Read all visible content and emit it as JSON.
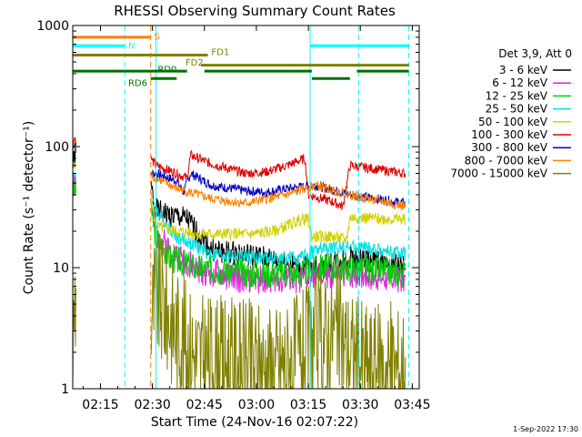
{
  "chart_data": {
    "type": "line",
    "title": "RHESSI Observing Summary Count Rates",
    "ylabel": "Count Rate (s⁻¹ detector⁻¹)",
    "xlabel": "Start Time (24-Nov-16 02:07:22)",
    "yscale": "log",
    "ylim": [
      1,
      1000
    ],
    "xlim_minutes": [
      0,
      100
    ],
    "x_ticks": [
      {
        "t": 8,
        "label": "02:15"
      },
      {
        "t": 23,
        "label": "02:30"
      },
      {
        "t": 38,
        "label": "02:45"
      },
      {
        "t": 53,
        "label": "03:00"
      },
      {
        "t": 68,
        "label": "03:15"
      },
      {
        "t": 83,
        "label": "03:30"
      },
      {
        "t": 98,
        "label": "03:45"
      }
    ],
    "y_ticks": [
      {
        "v": 1,
        "label": "1"
      },
      {
        "v": 10,
        "label": "10"
      },
      {
        "v": 100,
        "label": "100"
      },
      {
        "v": 1000,
        "label": "1000"
      }
    ],
    "legend_header": "Det 3,9, Att 0",
    "legend_position": "right",
    "series": [
      {
        "name": "3 - 6 keV",
        "color": "#000000",
        "seed": 1,
        "noise": 0.1,
        "pts": [
          [
            0,
            70
          ],
          [
            0.6,
            80
          ],
          [
            1,
            85
          ],
          [
            22.5,
            48
          ],
          [
            24,
            30
          ],
          [
            26,
            28
          ],
          [
            33,
            25
          ],
          [
            40,
            14
          ],
          [
            55,
            12
          ],
          [
            66,
            10
          ],
          [
            70,
            10
          ],
          [
            80,
            12
          ],
          [
            96,
            10
          ]
        ]
      },
      {
        "name": "6 - 12 keV",
        "color": "#e020e0",
        "seed": 2,
        "noise": 0.12,
        "pts": [
          [
            0,
            45
          ],
          [
            0.6,
            55
          ],
          [
            1,
            50
          ],
          [
            22.5,
            34
          ],
          [
            24,
            20
          ],
          [
            28,
            14
          ],
          [
            36,
            9.5
          ],
          [
            50,
            8
          ],
          [
            66,
            8
          ],
          [
            70,
            8.5
          ],
          [
            80,
            9
          ],
          [
            96,
            8
          ]
        ]
      },
      {
        "name": "12 - 25 keV",
        "color": "#00d000",
        "seed": 3,
        "noise": 0.12,
        "pts": [
          [
            0,
            40
          ],
          [
            0.6,
            45
          ],
          [
            1,
            42
          ],
          [
            22.5,
            30
          ],
          [
            24,
            18
          ],
          [
            28,
            12
          ],
          [
            36,
            10
          ],
          [
            50,
            9
          ],
          [
            66,
            9
          ],
          [
            70,
            10
          ],
          [
            80,
            10
          ],
          [
            96,
            9
          ]
        ]
      },
      {
        "name": "25 - 50 keV",
        "color": "#00e0e0",
        "seed": 4,
        "noise": 0.06,
        "pts": [
          [
            0,
            55
          ],
          [
            0.6,
            60
          ],
          [
            1,
            58
          ],
          [
            22.5,
            36
          ],
          [
            24,
            30
          ],
          [
            30,
            18
          ],
          [
            40,
            13
          ],
          [
            55,
            12
          ],
          [
            66,
            12
          ],
          [
            70,
            14
          ],
          [
            80,
            15
          ],
          [
            96,
            13
          ]
        ]
      },
      {
        "name": "50 - 100 keV",
        "color": "#d0d000",
        "seed": 5,
        "noise": 0.05,
        "pts": [
          [
            0,
            65
          ],
          [
            0.6,
            75
          ],
          [
            1,
            70
          ],
          [
            22.5,
            40
          ],
          [
            24,
            22
          ],
          [
            30,
            20
          ],
          [
            36,
            19
          ],
          [
            52,
            19
          ],
          [
            58,
            20
          ],
          [
            66,
            25
          ],
          [
            68,
            25
          ],
          [
            69,
            18
          ],
          [
            75,
            18
          ],
          [
            79,
            17
          ],
          [
            80,
            26
          ],
          [
            96,
            25
          ]
        ]
      },
      {
        "name": "100 - 300 keV",
        "color": "#e00000",
        "seed": 6,
        "noise": 0.04,
        "pts": [
          [
            0,
            110
          ],
          [
            0.6,
            120
          ],
          [
            1,
            110
          ],
          [
            22.5,
            80
          ],
          [
            24,
            70
          ],
          [
            30,
            60
          ],
          [
            33,
            55
          ],
          [
            34,
            85
          ],
          [
            40,
            72
          ],
          [
            50,
            60
          ],
          [
            56,
            62
          ],
          [
            62,
            70
          ],
          [
            67,
            80
          ],
          [
            68,
            40
          ],
          [
            75,
            35
          ],
          [
            78,
            32
          ],
          [
            80,
            70
          ],
          [
            96,
            60
          ]
        ]
      },
      {
        "name": "300 - 800 keV",
        "color": "#0000c0",
        "seed": 7,
        "noise": 0.04,
        "pts": [
          [
            0,
            100
          ],
          [
            0.6,
            110
          ],
          [
            1,
            100
          ],
          [
            22.5,
            60
          ],
          [
            24,
            60
          ],
          [
            30,
            52
          ],
          [
            32,
            42
          ],
          [
            34,
            60
          ],
          [
            40,
            48
          ],
          [
            50,
            43
          ],
          [
            56,
            42
          ],
          [
            62,
            45
          ],
          [
            70,
            48
          ],
          [
            80,
            40
          ],
          [
            96,
            34
          ]
        ]
      },
      {
        "name": "800 - 7000 keV",
        "color": "#ff8000",
        "seed": 8,
        "noise": 0.04,
        "pts": [
          [
            0,
            100
          ],
          [
            0.6,
            110
          ],
          [
            1,
            100
          ],
          [
            22.5,
            55
          ],
          [
            24,
            55
          ],
          [
            30,
            45
          ],
          [
            40,
            37
          ],
          [
            50,
            34
          ],
          [
            62,
            40
          ],
          [
            70,
            48
          ],
          [
            80,
            40
          ],
          [
            96,
            32
          ]
        ]
      },
      {
        "name": "7000 - 15000 keV",
        "color": "#808000",
        "seed": 9,
        "noise": 0.55,
        "pts": [
          [
            0,
            2
          ],
          [
            0.6,
            6
          ],
          [
            1,
            5
          ],
          [
            22.5,
            4
          ],
          [
            24,
            6
          ],
          [
            26,
            5
          ],
          [
            30,
            3
          ],
          [
            36,
            1.8
          ],
          [
            50,
            1.6
          ],
          [
            58,
            1.5
          ],
          [
            66,
            1.8
          ],
          [
            70,
            2.5
          ],
          [
            76,
            3
          ],
          [
            80,
            2
          ],
          [
            86,
            1.5
          ],
          [
            96,
            1.5
          ]
        ]
      }
    ],
    "vertical_markers": [
      {
        "t": 0,
        "style": "solid",
        "color": "#00ffff"
      },
      {
        "t": 15,
        "style": "dashed",
        "color": "#00ffff"
      },
      {
        "t": 22.5,
        "style": "dashed",
        "color": "#ff8000"
      },
      {
        "t": 24,
        "style": "solid",
        "color": "#00ffff"
      },
      {
        "t": 68.5,
        "style": "solid",
        "color": "#00ffff"
      },
      {
        "t": 82.5,
        "style": "dashed",
        "color": "#00ffff"
      },
      {
        "t": 97,
        "style": "dashed",
        "color": "#00ffff"
      }
    ],
    "flag_bars": [
      {
        "label": "S",
        "color": "#ff8000",
        "segments": [
          [
            0,
            22.5
          ]
        ],
        "y": 800,
        "label_t": 23.5,
        "label_y": 820
      },
      {
        "label": "N",
        "color": "#00ffff",
        "segments": [
          [
            0,
            15
          ],
          [
            68.5,
            97
          ]
        ],
        "y": 680,
        "label_t": 16,
        "label_y": 690
      },
      {
        "label": "FD1",
        "color": "#808000",
        "segments": [
          [
            0,
            39
          ]
        ],
        "y": 570,
        "label_t": 40,
        "label_y": 610
      },
      {
        "label": "FD2",
        "color": "#808000",
        "segments": [
          [
            37,
            97
          ]
        ],
        "y": 470,
        "label_t": 32.5,
        "label_y": 500
      },
      {
        "label": "RD0",
        "color": "#007000",
        "segments": [
          [
            0,
            33
          ],
          [
            38,
            63
          ],
          [
            63,
            69
          ],
          [
            82,
            97
          ]
        ],
        "y": 420,
        "label_t": 24.5,
        "label_y": 440
      },
      {
        "label": "RD6",
        "color": "#007000",
        "segments": [
          [
            22.5,
            30
          ],
          [
            69,
            80
          ]
        ],
        "y": 365,
        "label_t": 16,
        "label_y": 340
      }
    ]
  },
  "footer": {
    "timestamp": "1-Sep-2022 17:30"
  }
}
